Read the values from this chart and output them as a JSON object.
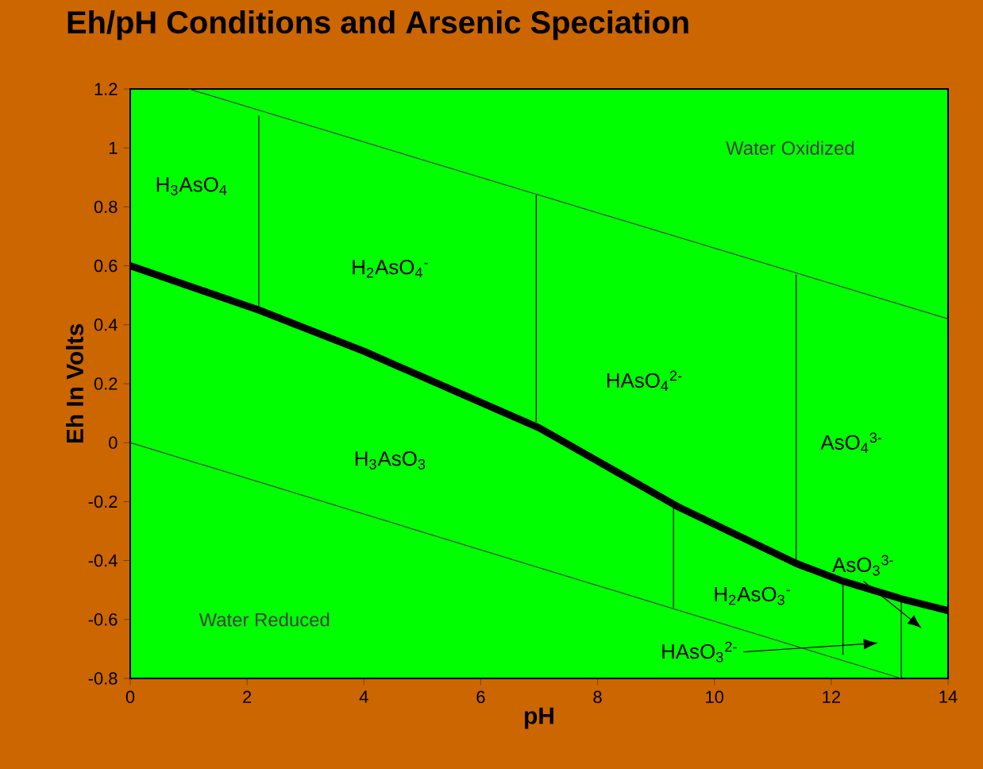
{
  "chart_data": {
    "type": "line",
    "title": "Eh/pH  Conditions and Arsenic Speciation",
    "xlabel": "pH",
    "ylabel": "Eh In Volts",
    "xlim": [
      0,
      14
    ],
    "ylim": [
      -0.8,
      1.2
    ],
    "xticks": [
      0,
      2,
      4,
      6,
      8,
      10,
      12,
      14
    ],
    "yticks": [
      -0.8,
      -0.6,
      -0.4,
      -0.2,
      0,
      0.2,
      0.4,
      0.6,
      0.8,
      1,
      1.2
    ],
    "grid": false,
    "marker": "none",
    "line_style": "solid",
    "series": [
      {
        "color": "#000000",
        "x": [
          0,
          2.2,
          4,
          7,
          9.4,
          11.4,
          12.2,
          13.2,
          14
        ],
        "values": [
          0.6,
          0.45,
          0.31,
          0.05,
          -0.22,
          -0.41,
          -0.47,
          -0.53,
          -0.57
        ]
      },
      {
        "color": "#404040",
        "x": [
          1,
          14
        ],
        "values": [
          1.2,
          0.42
        ]
      },
      {
        "color": "#404040",
        "x": [
          0,
          13.2
        ],
        "values": [
          0,
          -0.8
        ]
      },
      {
        "color": "#000000",
        "x": [
          2.2,
          2.2
        ],
        "values": [
          0.45,
          1.11
        ]
      },
      {
        "color": "#000000",
        "x": [
          6.95,
          6.95
        ],
        "values": [
          0.07,
          0.84
        ]
      },
      {
        "color": "#000000",
        "x": [
          11.4,
          11.4
        ],
        "values": [
          -0.41,
          0.57
        ]
      },
      {
        "color": "#000000",
        "x": [
          9.3,
          9.3
        ],
        "values": [
          -0.22,
          -0.56
        ]
      },
      {
        "color": "#000000",
        "x": [
          12.2,
          12.2
        ],
        "values": [
          -0.47,
          -0.72
        ]
      },
      {
        "color": "#000000",
        "x": [
          13.2,
          13.2
        ],
        "values": [
          -0.53,
          -0.8
        ]
      }
    ],
    "annotations": [
      "Water Oxidized",
      "Water Reduced",
      "H$_{3}$AsO$_{4}$",
      "H$_{2}$AsO$_{4}$$^{-}$",
      "H$_{3}$AsO$_{3}$",
      "HAsO$_{4}$$^{2-}$",
      "AsO$_{4}$$^{3-}$",
      "H$_{2}$AsO$_{3}$$^{-}$",
      "AsO$_{3}$$^{3-}$",
      "HAsO$_{3}$$^{2-}$"
    ]
  }
}
